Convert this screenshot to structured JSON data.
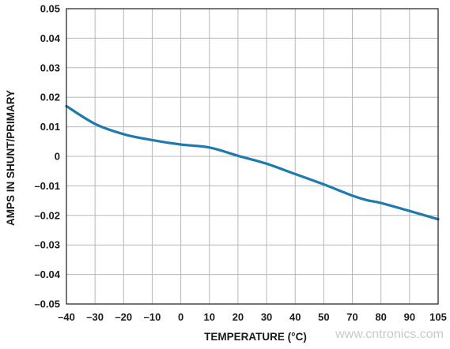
{
  "chart_data": {
    "type": "line",
    "xlabel": "TEMPERATURE (°C)",
    "ylabel": "AMPS IN SHUNT/PRIMARY",
    "x_ticks": [
      "–40",
      "–30",
      "–20",
      "–10",
      "0",
      "10",
      "20",
      "30",
      "40",
      "50",
      "70",
      "80",
      "90",
      "105"
    ],
    "y_ticks": [
      "0.05",
      "0.04",
      "0.03",
      "0.02",
      "0.01",
      "0",
      "–0.01",
      "–0.02",
      "–0.03",
      "–0.04",
      "–0.05"
    ],
    "ylim": [
      -0.05,
      0.05
    ],
    "grid": true,
    "series": [
      {
        "color": "#1f7ab0",
        "points": [
          {
            "x_index": 0,
            "y": 0.017
          },
          {
            "x_index": 1,
            "y": 0.011
          },
          {
            "x_index": 2,
            "y": 0.0075
          },
          {
            "x_index": 3,
            "y": 0.0055
          },
          {
            "x_index": 4,
            "y": 0.004
          },
          {
            "x_index": 5,
            "y": 0.003
          },
          {
            "x_index": 6,
            "y": 0.0002
          },
          {
            "x_index": 7,
            "y": -0.0025
          },
          {
            "x_index": 8,
            "y": -0.006
          },
          {
            "x_index": 9,
            "y": -0.0095
          },
          {
            "x_index": 10,
            "y": -0.0133
          },
          {
            "x_index": 10.5,
            "y": -0.0148
          },
          {
            "x_index": 11,
            "y": -0.0158
          },
          {
            "x_index": 12,
            "y": -0.0185
          },
          {
            "x_index": 13,
            "y": -0.0213
          }
        ]
      }
    ]
  },
  "watermark": "www.cntronics.com"
}
